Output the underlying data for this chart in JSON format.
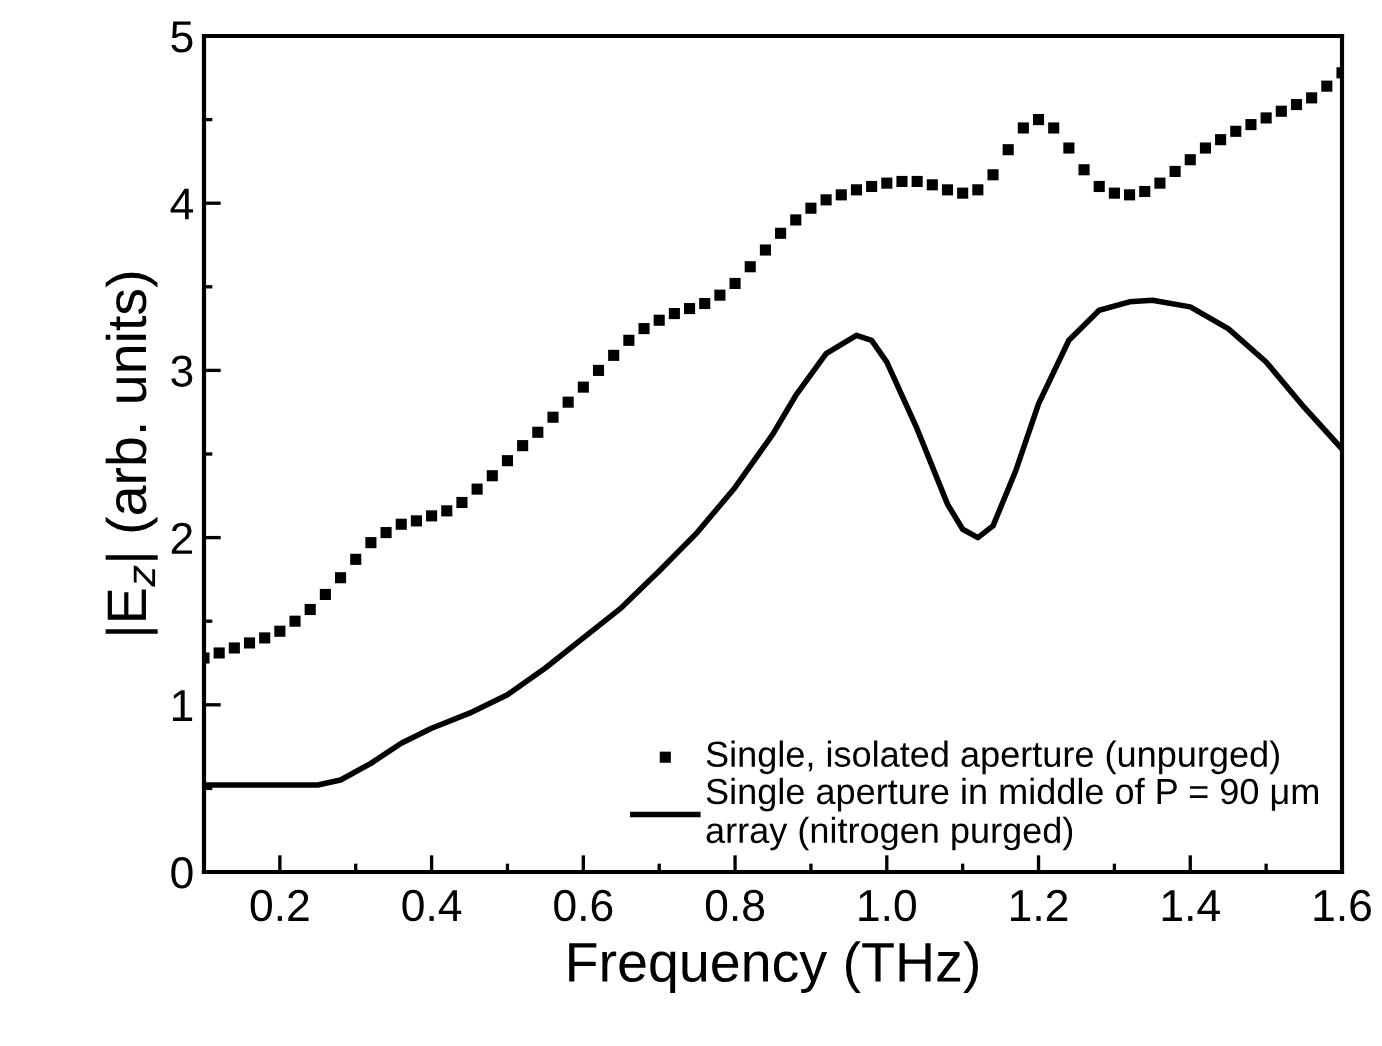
{
  "chart_data": {
    "type": "line",
    "xlabel": "Frequency (THz)",
    "ylabel": "|E$_{z}$| (arb. units)",
    "xlim": [
      0.1,
      1.6
    ],
    "xticks": [
      0.2,
      0.4,
      0.6,
      0.8,
      {
        "value": 1.0,
        "label": "1.0"
      },
      1.2,
      1.4,
      1.6
    ],
    "ylim": [
      0,
      5
    ],
    "yticks": [
      0,
      1,
      2,
      3,
      4,
      5
    ],
    "grid": false,
    "legend": "bottom right",
    "series": [
      {
        "type": "scatter",
        "name": "Single, isolated aperture (unpurged)",
        "color": "#000000",
        "marker": "square",
        "x": [
          0.1,
          0.12,
          0.14,
          0.16,
          0.18,
          0.2,
          0.22,
          0.24,
          0.26,
          0.28,
          0.3,
          0.32,
          0.34,
          0.36,
          0.38,
          0.4,
          0.42,
          0.44,
          0.46,
          0.48,
          0.5,
          0.52,
          0.54,
          0.56,
          0.58,
          0.6,
          0.62,
          0.64,
          0.66,
          0.68,
          0.7,
          0.72,
          0.74,
          0.76,
          0.78,
          0.8,
          0.82,
          0.84,
          0.86,
          0.88,
          0.9,
          0.92,
          0.94,
          0.96,
          0.98,
          1.0,
          1.02,
          1.04,
          1.06,
          1.08,
          1.1,
          1.12,
          1.14,
          1.16,
          1.18,
          1.2,
          1.22,
          1.24,
          1.26,
          1.28,
          1.3,
          1.32,
          1.34,
          1.36,
          1.38,
          1.4,
          1.42,
          1.44,
          1.46,
          1.48,
          1.5,
          1.52,
          1.54,
          1.56,
          1.58,
          1.6
        ],
        "values": [
          1.28,
          1.31,
          1.34,
          1.37,
          1.4,
          1.44,
          1.5,
          1.57,
          1.66,
          1.76,
          1.87,
          1.97,
          2.03,
          2.08,
          2.1,
          2.13,
          2.16,
          2.21,
          2.29,
          2.37,
          2.46,
          2.55,
          2.63,
          2.72,
          2.81,
          2.9,
          3.0,
          3.09,
          3.18,
          3.25,
          3.3,
          3.34,
          3.37,
          3.4,
          3.45,
          3.52,
          3.62,
          3.72,
          3.82,
          3.9,
          3.97,
          4.02,
          4.05,
          4.08,
          4.1,
          4.12,
          4.13,
          4.13,
          4.11,
          4.08,
          4.06,
          4.08,
          4.17,
          4.32,
          4.45,
          4.5,
          4.45,
          4.33,
          4.2,
          4.1,
          4.06,
          4.05,
          4.07,
          4.12,
          4.19,
          4.26,
          4.33,
          4.38,
          4.43,
          4.47,
          4.51,
          4.55,
          4.59,
          4.63,
          4.7,
          4.78
        ]
      },
      {
        "name": "Single aperture in middle of P = 90 μm\narray (nitrogen purged)",
        "color": "#000000",
        "marker": "none",
        "line_style": "solid",
        "x": [
          0.1,
          0.25,
          0.28,
          0.32,
          0.36,
          0.4,
          0.45,
          0.5,
          0.55,
          0.6,
          0.65,
          0.7,
          0.75,
          0.8,
          0.85,
          0.88,
          0.92,
          0.96,
          0.98,
          1.0,
          1.04,
          1.08,
          1.1,
          1.12,
          1.14,
          1.17,
          1.2,
          1.24,
          1.28,
          1.32,
          1.35,
          1.4,
          1.45,
          1.5,
          1.55,
          1.6
        ],
        "values": [
          0.52,
          0.52,
          0.55,
          0.65,
          0.77,
          0.86,
          0.95,
          1.06,
          1.22,
          1.4,
          1.58,
          1.8,
          2.03,
          2.3,
          2.62,
          2.85,
          3.1,
          3.21,
          3.18,
          3.05,
          2.65,
          2.2,
          2.05,
          2.0,
          2.07,
          2.4,
          2.8,
          3.18,
          3.36,
          3.41,
          3.42,
          3.38,
          3.25,
          3.05,
          2.78,
          2.53
        ]
      }
    ]
  }
}
